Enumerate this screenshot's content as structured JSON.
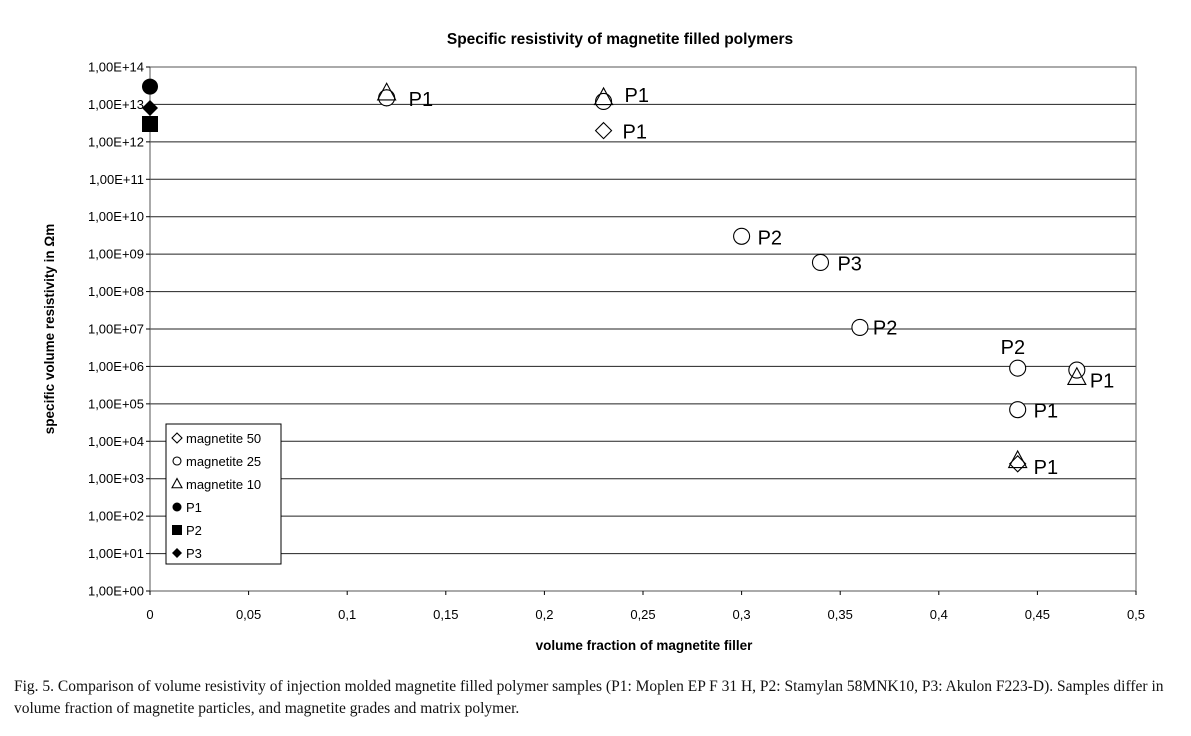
{
  "figure": {
    "caption": "Fig. 5. Comparison of volume resistivity of injection molded magnetite filled polymer samples (P1: Moplen EP F 31 H, P2: Stamylan 58MNK10, P3: Akulon F223-D). Samples differ in volume fraction of magnetite particles, and magnetite grades and matrix polymer."
  },
  "chart_data": {
    "type": "scatter",
    "title": "Specific resistivity of magnetite filled polymers",
    "xlabel": "volume fraction of magnetite filler",
    "ylabel": "specific volume resistivity in Ωm",
    "xlim": [
      0,
      0.5
    ],
    "ylim": [
      1,
      100000000000000.0
    ],
    "y_scale": "log",
    "grid": "horizontal",
    "legend_position": "lower-left",
    "x_ticks": [
      "0",
      "0,05",
      "0,1",
      "0,15",
      "0,2",
      "0,25",
      "0,3",
      "0,35",
      "0,4",
      "0,45",
      "0,5"
    ],
    "x_tick_values": [
      0,
      0.05,
      0.1,
      0.15,
      0.2,
      0.25,
      0.3,
      0.35,
      0.4,
      0.45,
      0.5
    ],
    "y_ticks": [
      "1,00E+00",
      "1,00E+01",
      "1,00E+02",
      "1,00E+03",
      "1,00E+04",
      "1,00E+05",
      "1,00E+06",
      "1,00E+07",
      "1,00E+08",
      "1,00E+09",
      "1,00E+10",
      "1,00E+11",
      "1,00E+12",
      "1,00E+13",
      "1,00E+14"
    ],
    "y_tick_values": [
      1,
      10,
      100,
      1000,
      10000,
      100000,
      1000000,
      10000000,
      100000000,
      1000000000,
      10000000000,
      100000000000,
      1000000000000,
      10000000000000,
      100000000000000
    ],
    "series": [
      {
        "name": "magnetite 50",
        "marker": "diamond-open",
        "points": [
          {
            "x": 0.12,
            "y": 15000000000000.0,
            "label": "P1"
          },
          {
            "x": 0.23,
            "y": 2000000000000.0,
            "label": "P1"
          },
          {
            "x": 0.44,
            "y": 2500.0,
            "label": "P1"
          }
        ]
      },
      {
        "name": "magnetite 25",
        "marker": "circle-open",
        "points": [
          {
            "x": 0.12,
            "y": 15000000000000.0,
            "label": ""
          },
          {
            "x": 0.23,
            "y": 12000000000000.0,
            "label": ""
          },
          {
            "x": 0.3,
            "y": 3000000000.0,
            "label": "P2"
          },
          {
            "x": 0.34,
            "y": 600000000.0,
            "label": "P3"
          },
          {
            "x": 0.36,
            "y": 11000000.0,
            "label": "P2"
          },
          {
            "x": 0.44,
            "y": 900000.0,
            "label": "P2"
          },
          {
            "x": 0.44,
            "y": 70000.0,
            "label": "P1"
          },
          {
            "x": 0.47,
            "y": 800000.0,
            "label": ""
          }
        ]
      },
      {
        "name": "magnetite 10",
        "marker": "triangle-open",
        "points": [
          {
            "x": 0.12,
            "y": 20000000000000.0,
            "label": ""
          },
          {
            "x": 0.23,
            "y": 15000000000000.0,
            "label": "P1"
          },
          {
            "x": 0.44,
            "y": 3000.0,
            "label": ""
          },
          {
            "x": 0.47,
            "y": 500000.0,
            "label": "P1"
          }
        ]
      },
      {
        "name": "P1",
        "marker": "circle-filled",
        "points": [
          {
            "x": 0,
            "y": 30000000000000.0,
            "label": ""
          }
        ]
      },
      {
        "name": "P2",
        "marker": "square-filled",
        "points": [
          {
            "x": 0,
            "y": 3000000000000.0,
            "label": ""
          }
        ]
      },
      {
        "name": "P3",
        "marker": "diamond-filled",
        "points": [
          {
            "x": 0,
            "y": 8000000000000.0,
            "label": ""
          }
        ]
      }
    ]
  }
}
